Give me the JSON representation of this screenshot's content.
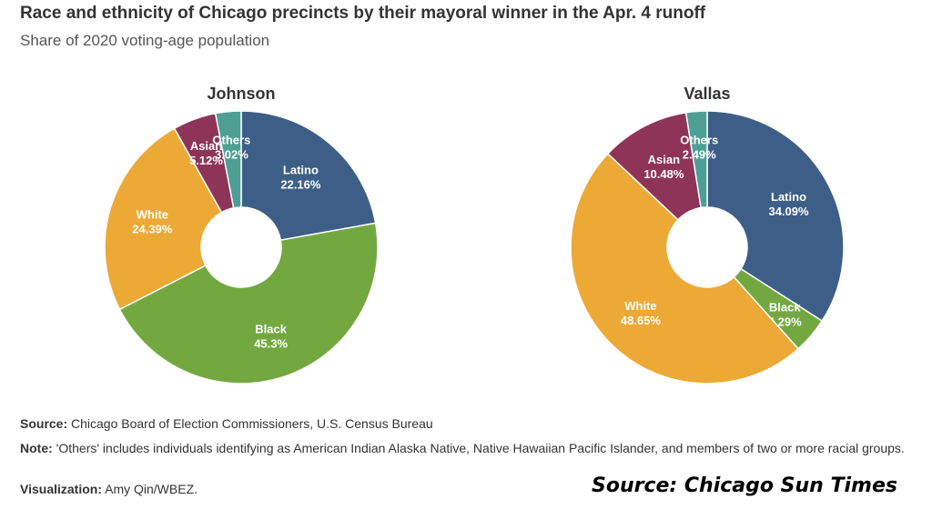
{
  "chart_data": [
    {
      "type": "pie",
      "donut": true,
      "title": "Johnson",
      "categories": [
        "Latino",
        "Black",
        "White",
        "Asian",
        "Others"
      ],
      "values": [
        22.16,
        45.3,
        24.39,
        5.12,
        3.02
      ],
      "labels": [
        "22.16%",
        "45.3%",
        "24.39%",
        "5.12%",
        "3.02%"
      ]
    },
    {
      "type": "pie",
      "donut": true,
      "title": "Vallas",
      "categories": [
        "Latino",
        "Black",
        "White",
        "Asian",
        "Others"
      ],
      "values": [
        34.09,
        4.29,
        48.65,
        10.48,
        2.49
      ],
      "labels": [
        "34.09%",
        "4.29%",
        "48.65%",
        "10.48%",
        "2.49%"
      ]
    }
  ],
  "colors": [
    "#3d5f87",
    "#73a841",
    "#eca936",
    "#8f3459",
    "#4e9f93"
  ],
  "header": {
    "title": "Race and ethnicity of Chicago precincts by their mayoral winner in the Apr. 4 runoff",
    "subtitle": "Share of 2020 voting-age population"
  },
  "footer": {
    "source_label": "Source:",
    "source": "Chicago Board of Election Commissioners, U.S. Census Bureau",
    "note_label": "Note:",
    "note": "'Others' includes individuals identifying as American Indian Alaska Native, Native Hawaiian Pacific Islander, and members of two or more racial groups.",
    "viz_label": "Visualization:",
    "viz": "Amy Qin/WBEZ.",
    "credit": "Source: Chicago Sun Times"
  }
}
